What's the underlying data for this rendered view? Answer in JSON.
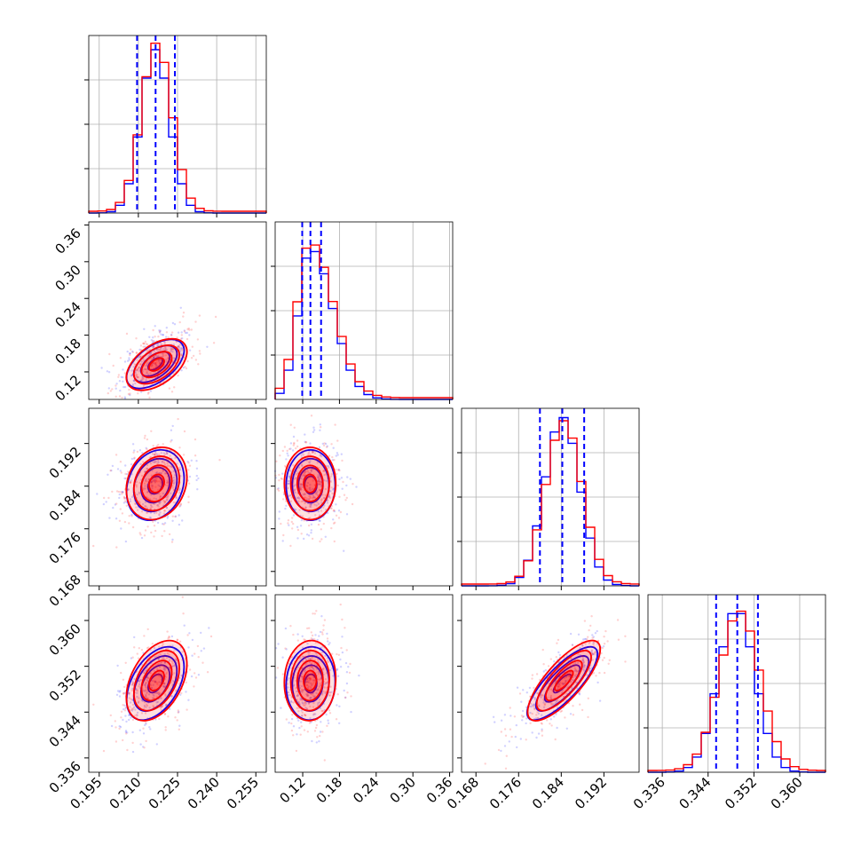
{
  "chart_data": {
    "type": "scatter",
    "title": "",
    "parameters": [
      {
        "name": "",
        "range": [
          0.191,
          0.259
        ],
        "ticks": [
          "0.195",
          "0.210",
          "0.225",
          "0.240",
          "0.255"
        ],
        "quantiles": [
          0.2095,
          0.2166,
          0.224
        ]
      },
      {
        "name": "",
        "range": [
          0.075,
          0.365
        ],
        "ticks": [
          "0.12",
          "0.18",
          "0.24",
          "0.30",
          "0.36"
        ],
        "quantiles": [
          0.1192,
          0.1326,
          0.15
        ]
      },
      {
        "name": "",
        "range": [
          0.1653,
          0.1986
        ],
        "ticks": [
          "0.168",
          "0.176",
          "0.184",
          "0.192"
        ],
        "quantiles": [
          0.18,
          0.1842,
          0.1883
        ]
      },
      {
        "name": "",
        "range": [
          0.3335,
          0.3645
        ],
        "ticks": [
          "0.336",
          "0.344",
          "0.352",
          "0.360"
        ],
        "quantiles": [
          0.3454,
          0.3491,
          0.3527
        ]
      }
    ],
    "series": [
      {
        "color": "#0000ff",
        "means": [
          0.2165,
          0.133,
          0.1842,
          0.349
        ],
        "stds": [
          0.0055,
          0.02,
          0.0033,
          0.0032
        ],
        "correlations": {
          "0-1": 0.55,
          "0-2": 0.2,
          "0-3": 0.45,
          "1-2": 0.0,
          "1-3": 0.05,
          "2-3": 0.8
        },
        "hist_peaks": [
          0.92,
          0.85,
          0.95,
          0.92
        ]
      },
      {
        "color": "#ff0000",
        "means": [
          0.217,
          0.132,
          0.1845,
          0.3495
        ],
        "stds": [
          0.0058,
          0.021,
          0.0034,
          0.0035
        ],
        "correlations": {
          "0-1": 0.5,
          "0-2": 0.18,
          "0-3": 0.42,
          "1-2": 0.0,
          "1-3": 0.05,
          "2-3": 0.78
        },
        "hist_peaks": [
          0.95,
          0.88,
          0.92,
          0.9
        ]
      }
    ],
    "histograms": {
      "type": "step",
      "grid": true,
      "quantile_line_color": "#0000ff",
      "quantile_line_style": "dashed"
    },
    "contours": {
      "levels": 4,
      "fill_color": "#ff0000"
    },
    "grid": true,
    "legend": "none"
  }
}
